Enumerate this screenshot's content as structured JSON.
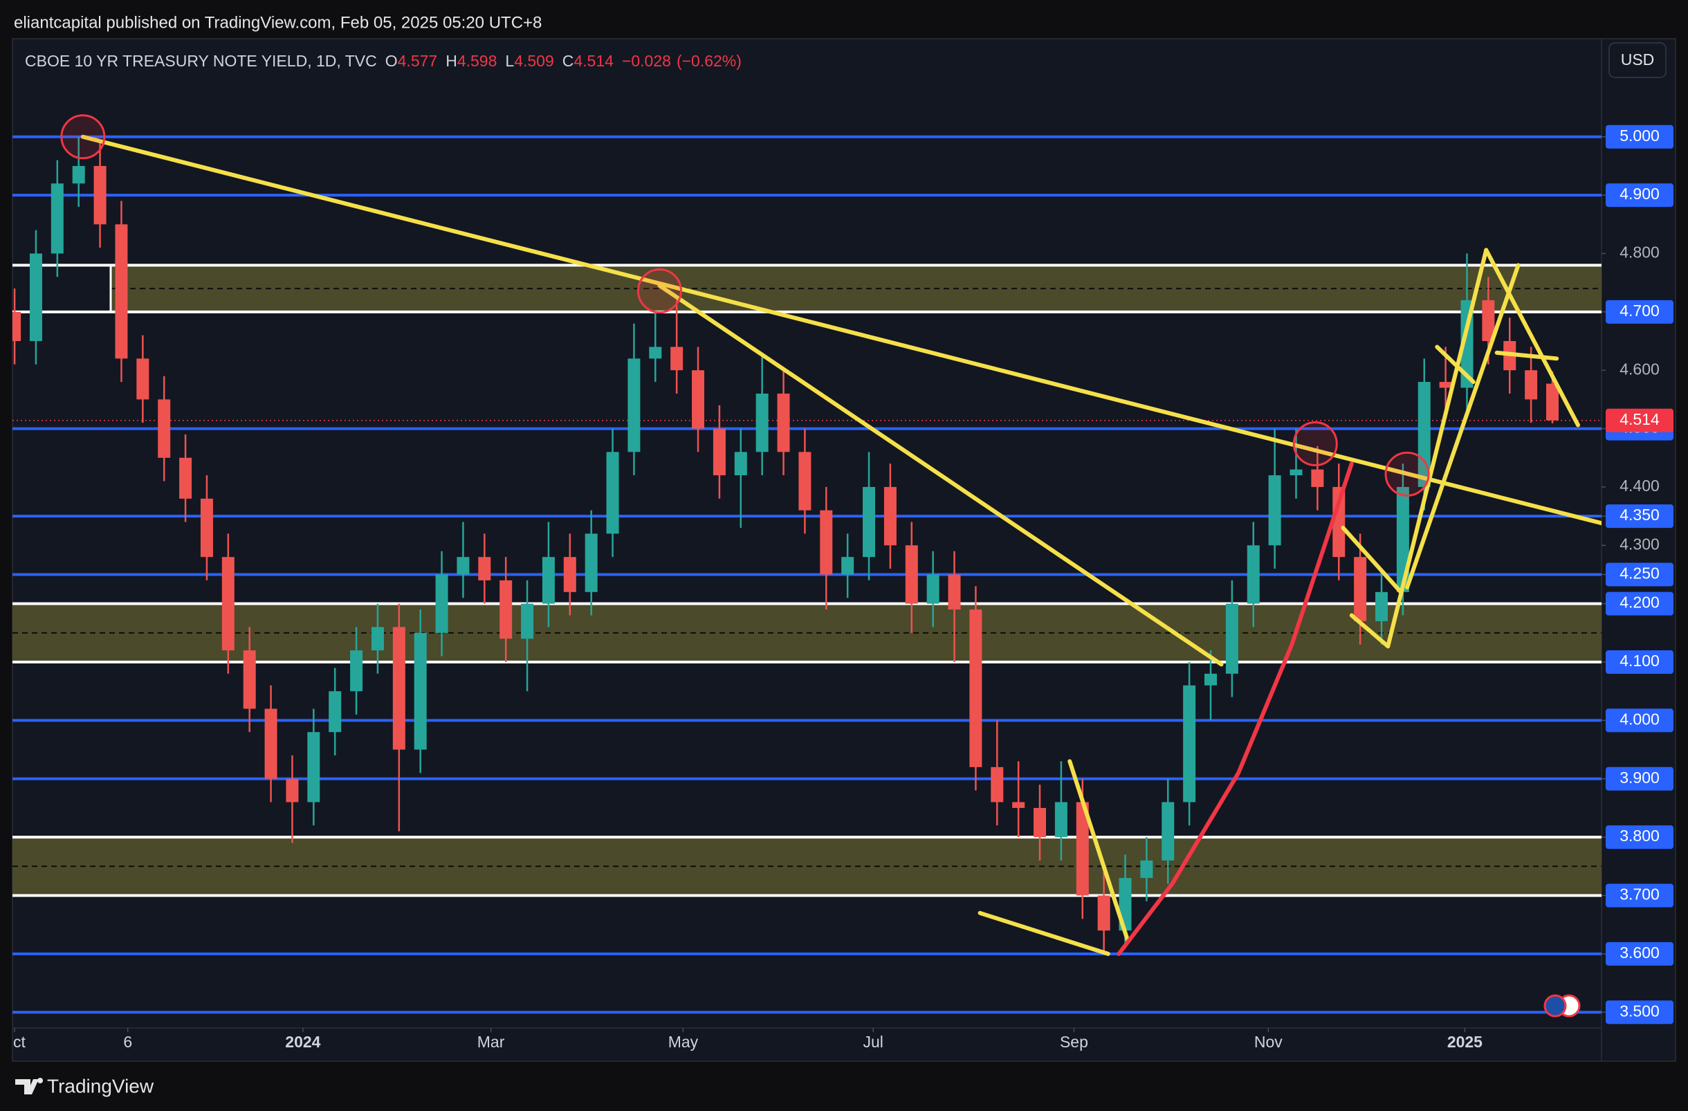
{
  "header": {
    "text": "eliantcapital published on TradingView.com, Feb 05, 2025 05:20 UTC+8"
  },
  "footer": {
    "brand": "TradingView"
  },
  "chart_data": {
    "type": "candlestick",
    "title": "CBOE 10 YR TREASURY NOTE YIELD, 1D, TVC",
    "ohlc": [
      {
        "label": "O",
        "value": 4.577
      },
      {
        "label": "H",
        "value": 4.598
      },
      {
        "label": "L",
        "value": 4.509
      },
      {
        "label": "C",
        "value": 4.514
      }
    ],
    "change": {
      "value": -0.028,
      "label": "−0.028"
    },
    "change_pct": {
      "value": -0.62,
      "label": "(−0.62%)"
    },
    "currency": "USD",
    "last_price": 4.514,
    "xlim": [
      -0.1,
      74.3
    ],
    "ylim": [
      3.473,
      5.168
    ],
    "xticks": [
      {
        "value": 0,
        "label": "ct"
      },
      {
        "value": 5.3,
        "label": "6"
      },
      {
        "value": 13.5,
        "label": "2024"
      },
      {
        "value": 22.3,
        "label": "Mar"
      },
      {
        "value": 31.3,
        "label": "May"
      },
      {
        "value": 40.2,
        "label": "Jul"
      },
      {
        "value": 49.6,
        "label": "Sep"
      },
      {
        "value": 58.7,
        "label": "Nov"
      },
      {
        "value": 67.9,
        "label": "2025"
      }
    ],
    "yticks": [
      {
        "value": 5.0,
        "label": "5.000"
      },
      {
        "value": 4.9,
        "label": "4.900"
      },
      {
        "value": 4.8,
        "label": "4.800"
      },
      {
        "value": 4.7,
        "label": "4.700"
      },
      {
        "value": 4.6,
        "label": "4.600"
      },
      {
        "value": 4.5,
        "label": "4.500"
      },
      {
        "value": 4.4,
        "label": "4.400"
      },
      {
        "value": 4.35,
        "label": "4.350"
      },
      {
        "value": 4.3,
        "label": "4.300"
      },
      {
        "value": 4.25,
        "label": "4.250"
      },
      {
        "value": 4.2,
        "label": "4.200"
      },
      {
        "value": 4.1,
        "label": "4.100"
      },
      {
        "value": 4.0,
        "label": "4.000"
      },
      {
        "value": 3.9,
        "label": "3.900"
      },
      {
        "value": 3.8,
        "label": "3.800"
      },
      {
        "value": 3.7,
        "label": "3.700"
      },
      {
        "value": 3.6,
        "label": "3.600"
      },
      {
        "value": 3.5,
        "label": "3.500"
      }
    ],
    "up_color": "#26a69a",
    "down_color": "#ef5350",
    "open": [
      4.7,
      4.65,
      4.8,
      4.92,
      4.95,
      4.85,
      4.62,
      4.55,
      4.45,
      4.38,
      4.28,
      4.12,
      4.02,
      3.9,
      3.86,
      3.98,
      4.05,
      4.12,
      4.16,
      3.95,
      4.15,
      4.25,
      4.28,
      4.24,
      4.14,
      4.2,
      4.28,
      4.22,
      4.32,
      4.46,
      4.62,
      4.64,
      4.6,
      4.5,
      4.42,
      4.46,
      4.56,
      4.46,
      4.36,
      4.25,
      4.28,
      4.4,
      4.3,
      4.2,
      4.25,
      4.19,
      3.92,
      3.86,
      3.85,
      3.8,
      3.86,
      3.7,
      3.64,
      3.73,
      3.76,
      3.86,
      4.06,
      4.08,
      4.2,
      4.3,
      4.42,
      4.43,
      4.4,
      4.28,
      4.17,
      4.22,
      4.4,
      4.58,
      4.57,
      4.72,
      4.65,
      4.6,
      4.577
    ],
    "high": [
      4.74,
      4.84,
      4.96,
      5.0,
      4.99,
      4.89,
      4.66,
      4.59,
      4.49,
      4.42,
      4.32,
      4.16,
      4.06,
      3.94,
      4.02,
      4.09,
      4.16,
      4.2,
      4.2,
      4.19,
      4.29,
      4.34,
      4.32,
      4.28,
      4.24,
      4.34,
      4.32,
      4.36,
      4.5,
      4.68,
      4.7,
      4.72,
      4.64,
      4.54,
      4.5,
      4.63,
      4.6,
      4.5,
      4.4,
      4.32,
      4.46,
      4.44,
      4.34,
      4.29,
      4.29,
      4.23,
      4.0,
      3.93,
      3.89,
      3.93,
      3.9,
      3.74,
      3.77,
      3.8,
      3.9,
      4.1,
      4.12,
      4.24,
      4.34,
      4.5,
      4.5,
      4.47,
      4.44,
      4.32,
      4.26,
      4.44,
      4.62,
      4.64,
      4.8,
      4.76,
      4.69,
      4.64,
      4.598
    ],
    "low": [
      4.61,
      4.61,
      4.76,
      4.88,
      4.81,
      4.58,
      4.51,
      4.41,
      4.34,
      4.24,
      4.08,
      3.98,
      3.86,
      3.79,
      3.82,
      3.94,
      4.01,
      4.08,
      3.81,
      3.91,
      4.11,
      4.21,
      4.2,
      4.1,
      4.05,
      4.16,
      4.18,
      4.18,
      4.28,
      4.42,
      4.58,
      4.56,
      4.46,
      4.38,
      4.33,
      4.42,
      4.42,
      4.32,
      4.19,
      4.21,
      4.24,
      4.26,
      4.15,
      4.16,
      4.1,
      3.88,
      3.82,
      3.8,
      3.76,
      3.76,
      3.66,
      3.6,
      3.61,
      3.69,
      3.72,
      3.82,
      4.0,
      4.04,
      4.16,
      4.26,
      4.38,
      4.36,
      4.24,
      4.13,
      4.13,
      4.18,
      4.36,
      4.53,
      4.53,
      4.61,
      4.56,
      4.51,
      4.509
    ],
    "close": [
      4.65,
      4.8,
      4.92,
      4.95,
      4.85,
      4.62,
      4.55,
      4.45,
      4.38,
      4.28,
      4.12,
      4.02,
      3.9,
      3.86,
      3.98,
      4.05,
      4.12,
      4.16,
      3.95,
      4.15,
      4.25,
      4.28,
      4.24,
      4.14,
      4.2,
      4.28,
      4.22,
      4.32,
      4.46,
      4.62,
      4.64,
      4.6,
      4.5,
      4.42,
      4.46,
      4.56,
      4.46,
      4.36,
      4.25,
      4.28,
      4.4,
      4.3,
      4.2,
      4.25,
      4.19,
      3.92,
      3.86,
      3.85,
      3.8,
      3.86,
      3.7,
      3.64,
      3.73,
      3.76,
      3.86,
      4.06,
      4.08,
      4.2,
      4.3,
      4.42,
      4.43,
      4.4,
      4.28,
      4.17,
      4.22,
      4.4,
      4.58,
      4.57,
      4.72,
      4.65,
      4.6,
      4.55,
      4.514
    ],
    "zones": [
      {
        "from": 4.7,
        "to": 4.78,
        "start": 4.5
      },
      {
        "from": 4.1,
        "to": 4.2,
        "start": -0.1
      },
      {
        "from": 3.7,
        "to": 3.8,
        "start": -0.1
      }
    ],
    "levels": [
      {
        "value": 5.0,
        "color": "#2962ff"
      },
      {
        "value": 4.9,
        "color": "#2962ff"
      },
      {
        "value": 4.78,
        "color": "#ffffff"
      },
      {
        "value": 4.7,
        "color": "#ffffff"
      },
      {
        "value": 4.5,
        "color": "#2962ff"
      },
      {
        "value": 4.35,
        "color": "#2962ff"
      },
      {
        "value": 4.25,
        "color": "#2962ff"
      },
      {
        "value": 4.2,
        "color": "#ffffff"
      },
      {
        "value": 4.1,
        "color": "#ffffff"
      },
      {
        "value": 4.0,
        "color": "#2962ff"
      },
      {
        "value": 3.9,
        "color": "#2962ff"
      },
      {
        "value": 3.8,
        "color": "#ffffff"
      },
      {
        "value": 3.7,
        "color": "#ffffff"
      },
      {
        "value": 3.6,
        "color": "#2962ff"
      },
      {
        "value": 3.5,
        "color": "#2962ff"
      }
    ],
    "trendlines": [
      {
        "color": "#f5e04a",
        "points": [
          [
            3.2,
            5.0
          ],
          [
            74.3,
            4.338
          ]
        ]
      },
      {
        "color": "#f5e04a",
        "points": [
          [
            30.2,
            4.745
          ],
          [
            56.5,
            4.096
          ]
        ]
      },
      {
        "color": "#f5e04a",
        "points": [
          [
            45.2,
            3.67
          ],
          [
            51.2,
            3.6
          ]
        ]
      },
      {
        "color": "#f5e04a",
        "points": [
          [
            49.4,
            3.93
          ],
          [
            52.1,
            3.625
          ]
        ]
      },
      {
        "color": "#f5e04a",
        "points": [
          [
            62.2,
            4.33
          ],
          [
            64.9,
            4.22
          ]
        ]
      },
      {
        "color": "#f5e04a",
        "points": [
          [
            62.6,
            4.18
          ],
          [
            64.3,
            4.127
          ]
        ]
      },
      {
        "color": "#f5e04a",
        "points": [
          [
            64.3,
            4.127
          ],
          [
            68.9,
            4.806
          ]
        ]
      },
      {
        "color": "#f5e04a",
        "points": [
          [
            65.2,
            4.228
          ],
          [
            70.4,
            4.78
          ]
        ]
      },
      {
        "color": "#f5e04a",
        "points": [
          [
            68.9,
            4.806
          ],
          [
            73.2,
            4.506
          ]
        ]
      },
      {
        "color": "#f5e04a",
        "points": [
          [
            66.6,
            4.64
          ],
          [
            68.3,
            4.58
          ]
        ]
      },
      {
        "color": "#f5e04a",
        "points": [
          [
            69.4,
            4.63
          ],
          [
            72.2,
            4.62
          ]
        ]
      },
      {
        "color": "#f23645",
        "points": [
          [
            51.7,
            3.6
          ],
          [
            54.2,
            3.72
          ],
          [
            57.3,
            3.91
          ],
          [
            59.8,
            4.13
          ],
          [
            62.6,
            4.44
          ]
        ]
      }
    ],
    "markers": [
      [
        3.2,
        5.0
      ],
      [
        30.2,
        4.736
      ],
      [
        60.9,
        4.474
      ],
      [
        65.2,
        4.422
      ]
    ]
  }
}
